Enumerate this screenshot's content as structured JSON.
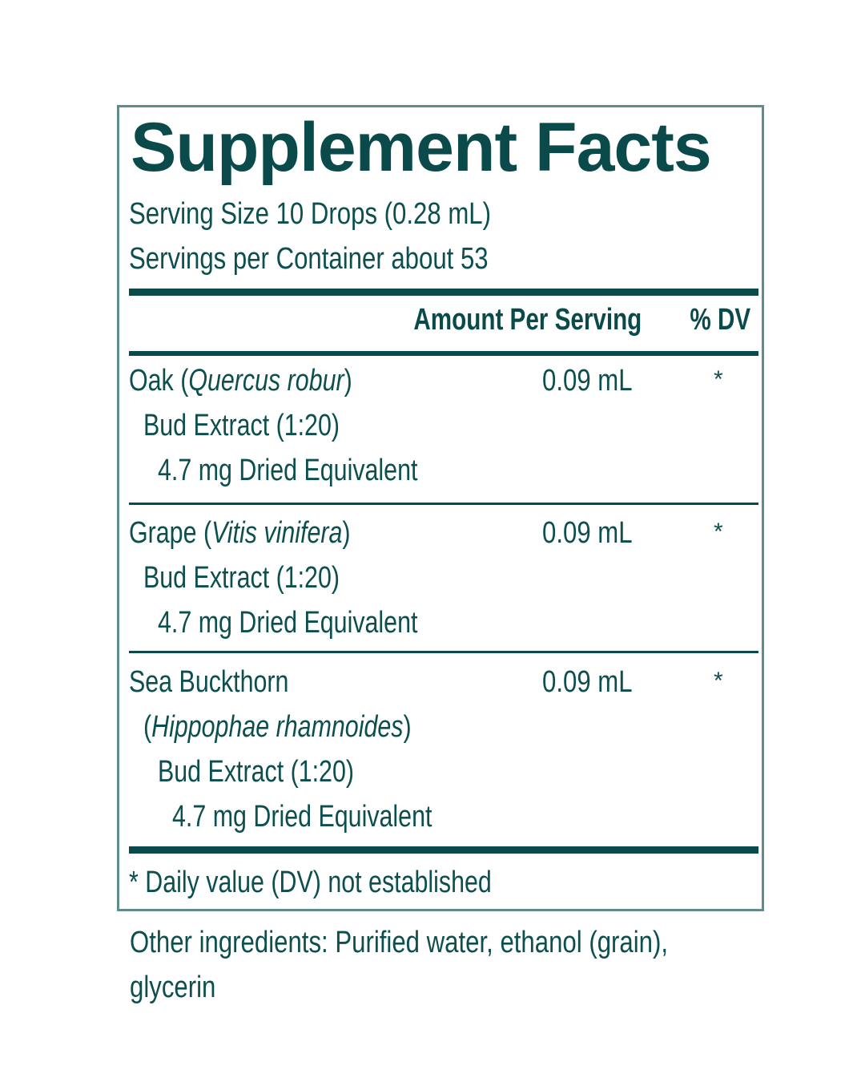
{
  "label": {
    "title": "Supplement Facts",
    "serving_size": "Serving Size 10 Drops (0.28 mL)",
    "servings_per_container": "Servings per Container about 53",
    "header_amount": "Amount Per Serving",
    "header_dv": "% DV",
    "ingredients": [
      {
        "common_name": "Oak",
        "latin_name": "Quercus robur",
        "line2": "Bud Extract (1:20)",
        "line3": "4.7 mg Dried Equivalent",
        "amount": "0.09 mL",
        "dv": "*"
      },
      {
        "common_name": "Grape",
        "latin_name": "Vitis vinifera",
        "line2": "Bud Extract (1:20)",
        "line3": "4.7 mg Dried Equivalent",
        "amount": "0.09 mL",
        "dv": "*"
      },
      {
        "common_name": "Sea Buckthorn",
        "latin_name": "Hippophae rhamnoides",
        "line2": "Bud Extract (1:20)",
        "line3": "4.7 mg Dried Equivalent",
        "amount": "0.09 mL",
        "dv": "*"
      }
    ],
    "footnote": "* Daily value (DV) not established"
  },
  "other_ingredients": {
    "line1": "Other ingredients: Purified water, ethanol (grain),",
    "line2": "glycerin"
  },
  "colors": {
    "text": "#0d4f4f",
    "rules": "#0b4a4a",
    "border": "#5f8d8d",
    "background": "#ffffff"
  }
}
